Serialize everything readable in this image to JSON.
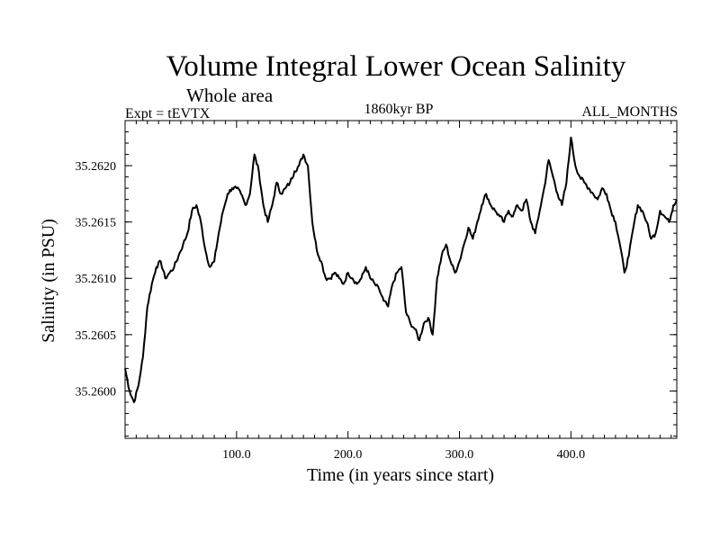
{
  "header": {
    "title": "Volume Integral Lower Ocean Salinity",
    "subtitle": "Whole area",
    "experiment": "Expt = tEVTX",
    "period": "1860kyr BP",
    "months": "ALL_MONTHS"
  },
  "chart_data": {
    "type": "line",
    "title": "Volume Integral Lower Ocean Salinity",
    "xlabel": "Time (in years since start)",
    "ylabel": "Salinity (in PSU)",
    "xlim": [
      0,
      495
    ],
    "ylim": [
      35.25958,
      35.2624
    ],
    "x_ticks": [
      100,
      200,
      300,
      400
    ],
    "x_tick_labels": [
      "100.0",
      "200.0",
      "300.0",
      "400.0"
    ],
    "y_ticks": [
      35.26,
      35.2605,
      35.261,
      35.2615,
      35.262
    ],
    "y_tick_labels": [
      "35.2600",
      "35.2605",
      "35.2610",
      "35.2615",
      "35.2620"
    ],
    "grid": false,
    "series": [
      {
        "name": "Salinity",
        "x": [
          0,
          4,
          8,
          12,
          16,
          20,
          24,
          28,
          32,
          36,
          40,
          44,
          48,
          52,
          56,
          60,
          64,
          68,
          72,
          76,
          80,
          84,
          88,
          92,
          96,
          100,
          104,
          108,
          112,
          116,
          120,
          124,
          128,
          132,
          136,
          140,
          144,
          148,
          152,
          156,
          160,
          164,
          168,
          172,
          176,
          180,
          184,
          188,
          192,
          196,
          200,
          204,
          208,
          212,
          216,
          220,
          224,
          228,
          232,
          236,
          240,
          244,
          248,
          252,
          256,
          260,
          264,
          268,
          272,
          276,
          280,
          284,
          288,
          292,
          296,
          300,
          304,
          308,
          312,
          316,
          320,
          324,
          328,
          332,
          336,
          340,
          344,
          348,
          352,
          356,
          360,
          364,
          368,
          372,
          376,
          380,
          384,
          388,
          392,
          396,
          400,
          404,
          408,
          412,
          416,
          420,
          424,
          428,
          432,
          436,
          440,
          444,
          448,
          452,
          456,
          460,
          464,
          468,
          472,
          476,
          480,
          484,
          488,
          492,
          495
        ],
        "values": [
          35.2602,
          35.26,
          35.2599,
          35.26005,
          35.2603,
          35.26075,
          35.26095,
          35.2611,
          35.26115,
          35.261,
          35.26105,
          35.2611,
          35.2612,
          35.2613,
          35.2614,
          35.2616,
          35.26165,
          35.2615,
          35.26125,
          35.2611,
          35.26115,
          35.2614,
          35.2616,
          35.26175,
          35.2618,
          35.2618,
          35.26175,
          35.26165,
          35.26175,
          35.2621,
          35.26195,
          35.26165,
          35.2615,
          35.26165,
          35.26185,
          35.26175,
          35.2618,
          35.26185,
          35.26195,
          35.262,
          35.2621,
          35.262,
          35.2615,
          35.26125,
          35.26115,
          35.261,
          35.261,
          35.26105,
          35.261,
          35.26095,
          35.26105,
          35.261,
          35.26095,
          35.261,
          35.2611,
          35.261,
          35.26095,
          35.2609,
          35.2608,
          35.26075,
          35.26095,
          35.26105,
          35.2611,
          35.2607,
          35.2606,
          35.26055,
          35.26045,
          35.2606,
          35.26065,
          35.2605,
          35.261,
          35.2612,
          35.2613,
          35.26115,
          35.26105,
          35.26115,
          35.2613,
          35.26145,
          35.26135,
          35.2615,
          35.26165,
          35.26175,
          35.26165,
          35.2616,
          35.26155,
          35.2615,
          35.2616,
          35.26155,
          35.26165,
          35.2616,
          35.2617,
          35.2615,
          35.2614,
          35.2616,
          35.2618,
          35.26205,
          35.2619,
          35.26175,
          35.26165,
          35.26185,
          35.26225,
          35.262,
          35.2619,
          35.26185,
          35.2618,
          35.26175,
          35.2617,
          35.2618,
          35.26175,
          35.2616,
          35.2615,
          35.2613,
          35.26105,
          35.2612,
          35.26145,
          35.26165,
          35.2616,
          35.2615,
          35.26135,
          35.2614,
          35.2616,
          35.26155,
          35.2615,
          35.26165,
          35.2617
        ]
      }
    ]
  }
}
